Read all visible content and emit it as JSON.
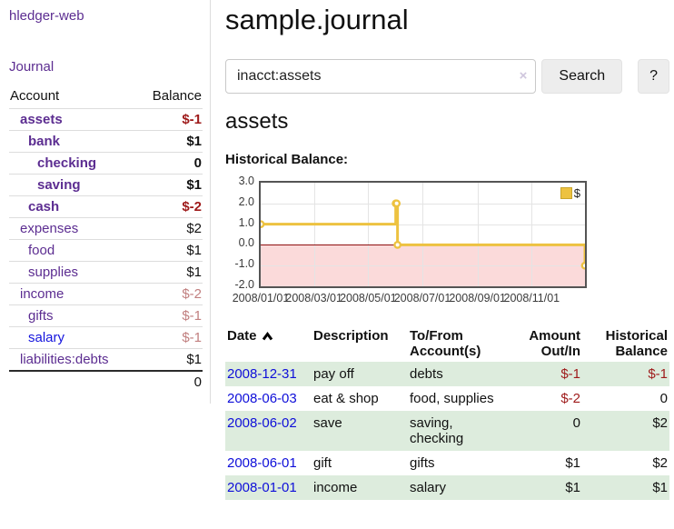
{
  "app": {
    "brand": "hledger-web",
    "nav_journal": "Journal"
  },
  "sidebar": {
    "header": {
      "account": "Account",
      "balance": "Balance"
    },
    "accounts": [
      {
        "name": "assets",
        "balance": "$-1"
      },
      {
        "name": "bank",
        "balance": "$1"
      },
      {
        "name": "checking",
        "balance": "0"
      },
      {
        "name": "saving",
        "balance": "$1"
      },
      {
        "name": "cash",
        "balance": "$-2"
      },
      {
        "name": "expenses",
        "balance": "$2"
      },
      {
        "name": "food",
        "balance": "$1"
      },
      {
        "name": "supplies",
        "balance": "$1"
      },
      {
        "name": "income",
        "balance": "$-2"
      },
      {
        "name": "gifts",
        "balance": "$-1"
      },
      {
        "name": "salary",
        "balance": "$-1"
      },
      {
        "name": "liabilities:debts",
        "balance": "$1"
      }
    ],
    "total": "0"
  },
  "main": {
    "title": "sample.journal",
    "search": {
      "value": "inacct:assets",
      "clear_icon": "×",
      "button": "Search",
      "help": "?"
    },
    "account_heading": "assets",
    "chart_label": "Historical Balance:"
  },
  "chart_data": {
    "type": "line",
    "style": "step",
    "title": "Historical Balance:",
    "ylim": [
      -2,
      3
    ],
    "y_ticks": [
      3.0,
      2.0,
      1.0,
      0.0,
      -1.0,
      -2.0
    ],
    "x_max_day": 365,
    "x_ticks": [
      {
        "label": "2008/01/01",
        "day": 0
      },
      {
        "label": "2008/03/01",
        "day": 60
      },
      {
        "label": "2008/05/01",
        "day": 121
      },
      {
        "label": "2008/07/01",
        "day": 182
      },
      {
        "label": "2008/09/01",
        "day": 244
      },
      {
        "label": "2008/11/01",
        "day": 305
      }
    ],
    "series": [
      {
        "name": "$",
        "color": "#edc240",
        "points": [
          {
            "date": "2008-01-01",
            "day": 0,
            "value": 1
          },
          {
            "date": "2008-06-01",
            "day": 152,
            "value": 2
          },
          {
            "date": "2008-06-02",
            "day": 153,
            "value": 2
          },
          {
            "date": "2008-06-03",
            "day": 154,
            "value": 0
          },
          {
            "date": "2008-12-31",
            "day": 365,
            "value": -1
          }
        ]
      }
    ],
    "negative_region": true,
    "negative_region_color": "#fbdada",
    "zero_line_color": "#8f1010",
    "legend_position": "top-right",
    "grid": true
  },
  "register": {
    "headers": {
      "date": "Date",
      "description": "Description",
      "accounts": "To/From Account(s)",
      "amount": "Amount Out/In",
      "balance": "Historical Balance"
    },
    "sort_icon": "chevron-up",
    "rows": [
      {
        "date": "2008-12-31",
        "description": "pay off",
        "accounts": "debts",
        "amount": "$-1",
        "balance": "$-1"
      },
      {
        "date": "2008-06-03",
        "description": "eat & shop",
        "accounts": "food, supplies",
        "amount": "$-2",
        "balance": "0"
      },
      {
        "date": "2008-06-02",
        "description": "save",
        "accounts": "saving, checking",
        "amount": "0",
        "balance": "$2"
      },
      {
        "date": "2008-06-01",
        "description": "gift",
        "accounts": "gifts",
        "amount": "$1",
        "balance": "$2"
      },
      {
        "date": "2008-01-01",
        "description": "income",
        "accounts": "salary",
        "amount": "$1",
        "balance": "$1"
      }
    ]
  },
  "colors": {
    "link_purple": "#5c2d91",
    "link_blue": "#0f0fd9",
    "negative": "#9e1a1a",
    "negative_faded": "#c17f7f",
    "row_green": "#ddecdd",
    "series_gold": "#edc240"
  }
}
